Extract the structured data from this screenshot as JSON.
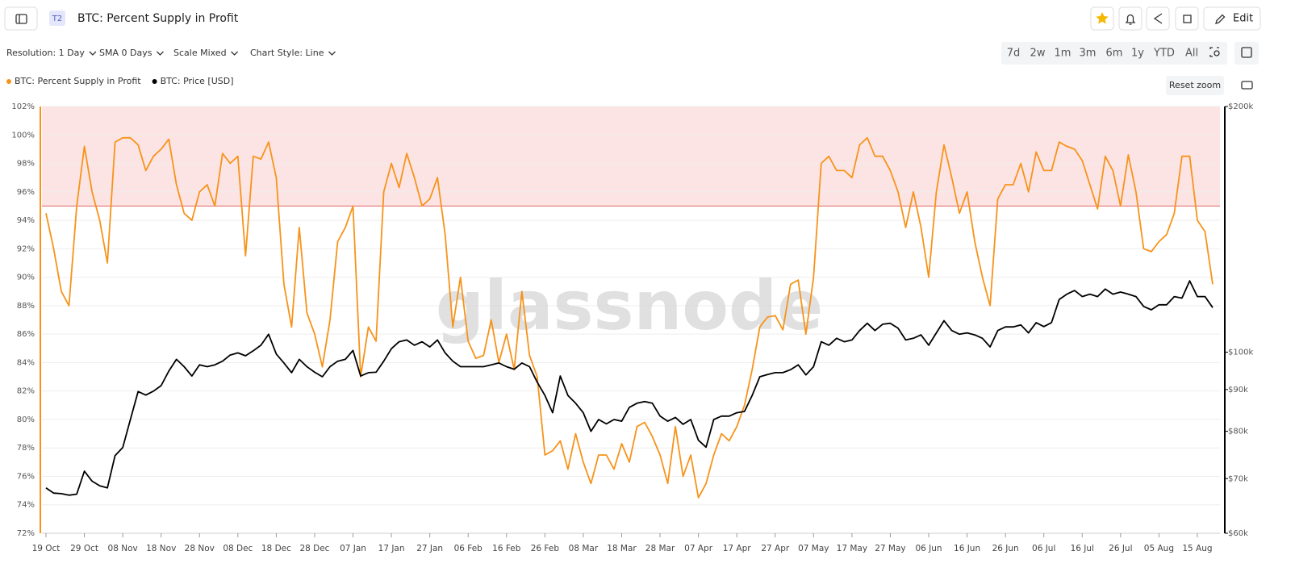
{
  "header": {
    "badge": "T2",
    "title": "BTC: Percent Supply in Profit",
    "edit": "Edit"
  },
  "toolbar": {
    "dropdowns": [
      "Resolution: 1 Day",
      "SMA 0 Days",
      "Scale Mixed",
      "Chart Style: Line"
    ],
    "ranges": [
      "7d",
      "2w",
      "1m",
      "3m",
      "6m",
      "1y",
      "YTD",
      "All"
    ],
    "reset_zoom": "Reset zoom"
  },
  "watermark": "glassnode",
  "chart_data": {
    "type": "line",
    "x": [
      "19 Oct",
      null,
      null,
      null,
      null,
      "29 Oct",
      null,
      null,
      null,
      null,
      "08 Nov",
      null,
      null,
      null,
      null,
      "18 Nov",
      null,
      null,
      null,
      null,
      "28 Nov",
      null,
      null,
      null,
      null,
      "08 Dec",
      null,
      null,
      null,
      null,
      "18 Dec",
      null,
      null,
      null,
      null,
      "28 Dec",
      null,
      null,
      null,
      null,
      "07 Jan",
      null,
      null,
      null,
      null,
      "17 Jan",
      null,
      null,
      null,
      null,
      "27 Jan",
      null,
      null,
      null,
      null,
      "06 Feb",
      null,
      null,
      null,
      null,
      "16 Feb",
      null,
      null,
      null,
      null,
      "26 Feb",
      null,
      null,
      null,
      null,
      "08 Mar",
      null,
      null,
      null,
      null,
      "18 Mar",
      null,
      null,
      null,
      null,
      "28 Mar",
      null,
      null,
      null,
      null,
      "07 Apr",
      null,
      null,
      null,
      null,
      "17 Apr",
      null,
      null,
      null,
      null,
      "27 Apr",
      null,
      null,
      null,
      null,
      "07 May",
      null,
      null,
      null,
      null,
      "17 May",
      null,
      null,
      null,
      null,
      "27 May",
      null,
      null,
      null,
      null,
      "06 Jun",
      null,
      null,
      null,
      null,
      "16 Jun",
      null,
      null,
      null,
      null,
      "26 Jun",
      null,
      null,
      null,
      null,
      "06 Jul",
      null,
      null,
      null,
      null,
      "16 Jul",
      null,
      null,
      null,
      null,
      "26 Jul",
      null,
      null,
      null,
      null,
      "05 Aug",
      null,
      null,
      null,
      null,
      "15 Aug",
      null,
      null
    ],
    "series": [
      {
        "name": "BTC: Percent Supply in Profit",
        "color": "#f7931a",
        "values": [
          94.5,
          92,
          89,
          88,
          95,
          99.2,
          96,
          94,
          91,
          99.5,
          99.8,
          99.8,
          99.3,
          97.5,
          98.5,
          99,
          99.7,
          96.5,
          94.5,
          94,
          96,
          96.5,
          95,
          98.7,
          98,
          98.5,
          91.5,
          98.5,
          98.3,
          99.5,
          97,
          89.5,
          86.5,
          93.5,
          87.5,
          86,
          83.7,
          87,
          92.5,
          93.5,
          95,
          83,
          86.5,
          85.5,
          96,
          98,
          96.3,
          98.7,
          97,
          95,
          95.5,
          97,
          93,
          86.5,
          90,
          85.5,
          84.3,
          84.5,
          87,
          84,
          86,
          83.5,
          89,
          84.5,
          83,
          77.5,
          77.8,
          78.5,
          76.5,
          79,
          77,
          75.5,
          77.5,
          77.5,
          76.5,
          78.3,
          77,
          79.5,
          79.8,
          78.8,
          77.5,
          75.5,
          79.5,
          76,
          77.5,
          74.5,
          75.5,
          77.5,
          79,
          78.5,
          79.5,
          81,
          83.5,
          86.5,
          87.2,
          87.3,
          86.3,
          89.5,
          89.8,
          86,
          90,
          98,
          98.5,
          97.5,
          97.5,
          97,
          99.3,
          99.8,
          98.5,
          98.5,
          97.5,
          96,
          93.5,
          96,
          93.5,
          90,
          96,
          99.3,
          97,
          94.5,
          96,
          92.5,
          90,
          88,
          95.5,
          96.5,
          96.5,
          98,
          96,
          98.8,
          97.5,
          97.5,
          99.5,
          99.2,
          99,
          98.2,
          96.5,
          94.8,
          98.5,
          97.5,
          95,
          98.6,
          96,
          92,
          91.8,
          92.5,
          93,
          94.5,
          98.5,
          98.5,
          94,
          93.2,
          89.5
        ]
      },
      {
        "name": "BTC: Price [USD]",
        "color": "#000000",
        "axis": "y2",
        "values": [
          68200,
          67200,
          67100,
          66800,
          67000,
          71500,
          69500,
          68600,
          68200,
          74700,
          76400,
          82700,
          89500,
          88600,
          89600,
          91000,
          94800,
          98000,
          96000,
          93500,
          96500,
          96000,
          96500,
          97500,
          99200,
          99800,
          99000,
          100400,
          102000,
          105200,
          99500,
          97000,
          94400,
          98000,
          96000,
          94500,
          93300,
          96000,
          97500,
          98000,
          100500,
          93500,
          94400,
          94500,
          97500,
          101000,
          103000,
          103500,
          102000,
          103000,
          101500,
          103500,
          99800,
          97500,
          96000,
          96000,
          96000,
          96000,
          96500,
          97000,
          96000,
          95300,
          97000,
          96000,
          91900,
          88500,
          84300,
          93500,
          88500,
          86600,
          84300,
          80000,
          82700,
          81700,
          82700,
          82300,
          85600,
          86600,
          87000,
          86600,
          83500,
          82300,
          83200,
          81600,
          82700,
          78000,
          76500,
          82700,
          83500,
          83500,
          84300,
          84600,
          88500,
          93300,
          93900,
          94400,
          94400,
          95200,
          96500,
          93800,
          96000,
          103000,
          102000,
          104000,
          103000,
          103500,
          106300,
          108500,
          106300,
          108200,
          108500,
          107000,
          103500,
          104000,
          105000,
          102000,
          105600,
          109300,
          106300,
          105200,
          105600,
          105000,
          104000,
          101500,
          106300,
          107400,
          107400,
          108000,
          105600,
          108700,
          107500,
          108700,
          116000,
          117800,
          119000,
          117000,
          117800,
          117000,
          119500,
          117800,
          118500,
          117800,
          117000,
          113800,
          112700,
          114300,
          114300,
          117000,
          116500,
          122300,
          117000,
          117000,
          113400
        ]
      }
    ],
    "ylim": [
      72,
      102
    ],
    "yticks": [
      {
        "value": 72,
        "label": "72%"
      },
      {
        "value": 74,
        "label": "74%"
      },
      {
        "value": 76,
        "label": "76%"
      },
      {
        "value": 78,
        "label": "78%"
      },
      {
        "value": 80,
        "label": "80%"
      },
      {
        "value": 82,
        "label": "82%"
      },
      {
        "value": 84,
        "label": "84%"
      },
      {
        "value": 86,
        "label": "86%"
      },
      {
        "value": 88,
        "label": "88%"
      },
      {
        "value": 90,
        "label": "90%"
      },
      {
        "value": 92,
        "label": "92%"
      },
      {
        "value": 94,
        "label": "94%"
      },
      {
        "value": 96,
        "label": "96%"
      },
      {
        "value": 98,
        "label": "98%"
      },
      {
        "value": 100,
        "label": "100%"
      },
      {
        "value": 102,
        "label": "102%"
      }
    ],
    "y2lim": [
      60000,
      200000
    ],
    "y2scale": "log",
    "y2ticks": [
      {
        "value": 60000,
        "label": "$60k"
      },
      {
        "value": 70000,
        "label": "$70k"
      },
      {
        "value": 80000,
        "label": "$80k"
      },
      {
        "value": 90000,
        "label": "$90k"
      },
      {
        "value": 100000,
        "label": "$100k"
      },
      {
        "value": 200000,
        "label": "$200k"
      }
    ],
    "grid": true,
    "shaded_band": {
      "from": 95,
      "color": "#fde4e4",
      "edge_color": "#e06666"
    }
  }
}
